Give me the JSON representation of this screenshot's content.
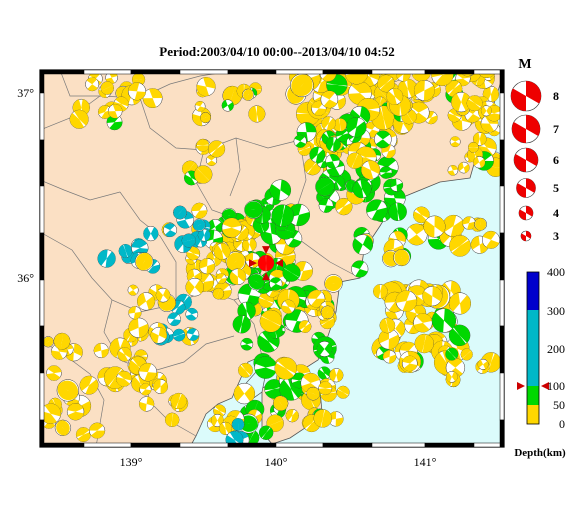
{
  "map": {
    "title": "Period:2003/04/10 00:00--2013/04/10 04:52",
    "lat_labels": [
      "37°",
      "36°"
    ],
    "lon_labels": [
      "139°",
      "140°",
      "141°"
    ],
    "extent": {
      "lon": [
        138.45,
        141.55
      ],
      "lat": [
        35.1,
        37.15
      ]
    },
    "colors": {
      "land": "#fbe0c4",
      "sea": "#dbfbfb",
      "boundary": "#7a7a7a",
      "coast": "#555555",
      "shallow": "#ffd700",
      "mid": "#00d800",
      "deep": "#00b8c8",
      "verydeep": "#0000cc",
      "highlight": "#ff0000"
    },
    "highlight_event": {
      "lon": 139.96,
      "lat": 36.1
    }
  },
  "magnitude_legend": {
    "label": "M",
    "items": [
      "8",
      "7",
      "6",
      "5",
      "4",
      "3"
    ]
  },
  "depth_scale": {
    "ticks": [
      "400",
      "300",
      "200",
      "100",
      "50",
      "0"
    ],
    "label": "Depth(km)",
    "marker_depth": 100,
    "bands": [
      {
        "from": 0,
        "to": 50,
        "color": "#ffd700"
      },
      {
        "from": 50,
        "to": 100,
        "color": "#00d800"
      },
      {
        "from": 100,
        "to": 150,
        "color": "#00b8c8"
      },
      {
        "from": 150,
        "to": 300,
        "color": "#00b8c8"
      },
      {
        "from": 300,
        "to": 400,
        "color": "#0000cc"
      }
    ]
  }
}
